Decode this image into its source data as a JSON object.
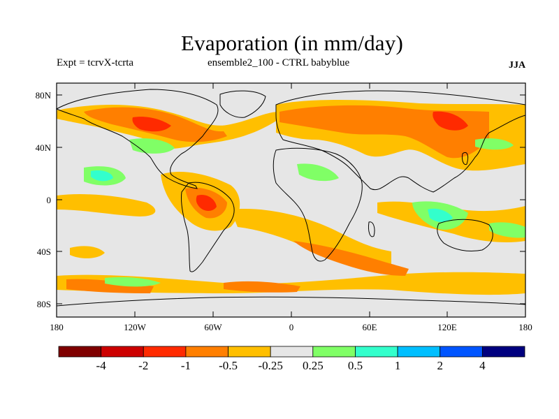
{
  "title": "Evaporation (in mm/day)",
  "subtitle_left": "Expt = tcrvX-tcrta",
  "subtitle_center": "ensemble2_100 - CTRL babyblue",
  "season": "JJA",
  "map": {
    "background_color": "#e6e6e6",
    "lat_ticks": [
      "80N",
      "40N",
      "0",
      "40S",
      "80S"
    ],
    "lon_ticks": [
      "180",
      "120W",
      "60W",
      "0",
      "60E",
      "120E",
      "180"
    ]
  },
  "colorbar": {
    "colors": [
      "#7f0000",
      "#cc0000",
      "#ff2a00",
      "#ff7f00",
      "#ffbf00",
      "#e6e6e6",
      "#80ff66",
      "#33ffcc",
      "#00bfff",
      "#0055ff",
      "#00007f"
    ],
    "labels": [
      "-4",
      "-2",
      "-1",
      "-0.5",
      "-0.25",
      "0.25",
      "0.5",
      "1",
      "2",
      "4"
    ]
  }
}
